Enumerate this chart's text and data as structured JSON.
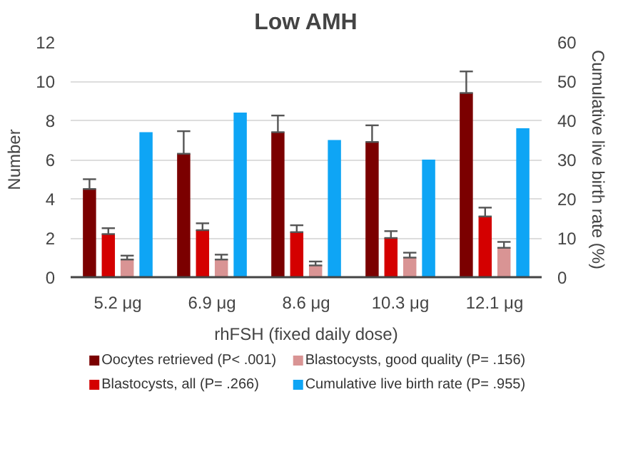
{
  "chart_data": {
    "type": "bar",
    "title": "Low AMH",
    "xlabel": "rhFSH (fixed daily dose)",
    "ylabel": "Number",
    "y2label": "Cumulative live birth rate (%)",
    "categories": [
      "5.2 μg",
      "6.9 μg",
      "8.6 μg",
      "10.3 μg",
      "12.1 μg"
    ],
    "series": [
      {
        "name": "Oocytes retrieved (P< .001)",
        "color": "#7b0000",
        "values": [
          4.5,
          6.3,
          7.4,
          6.9,
          9.4
        ],
        "errors": [
          [
            4.5,
            5.0
          ],
          [
            6.3,
            7.45
          ],
          [
            7.4,
            8.25
          ],
          [
            6.9,
            7.75
          ],
          [
            9.4,
            10.5
          ]
        ]
      },
      {
        "name": "Blastocysts, all (P= .266)",
        "color": "#d40000",
        "values": [
          2.2,
          2.4,
          2.3,
          2.0,
          3.1
        ],
        "errors": [
          [
            2.2,
            2.5
          ],
          [
            2.4,
            2.75
          ],
          [
            2.3,
            2.65
          ],
          [
            2.0,
            2.35
          ],
          [
            3.1,
            3.55
          ]
        ]
      },
      {
        "name": "Blastocysts, good quality (P= .156)",
        "color": "#d99494",
        "values": [
          0.9,
          0.9,
          0.6,
          1.0,
          1.5
        ],
        "errors": [
          [
            0.9,
            1.1
          ],
          [
            0.9,
            1.15
          ],
          [
            0.6,
            0.8
          ],
          [
            1.0,
            1.25
          ],
          [
            1.5,
            1.8
          ]
        ]
      },
      {
        "name": "Cumulative live birth rate (P= .955)",
        "color": "#0ea5f5",
        "values": [
          37,
          42,
          35,
          30,
          38
        ],
        "axis": "y2"
      }
    ],
    "ylim": [
      0,
      12
    ],
    "yticks": [
      0,
      2,
      4,
      6,
      8,
      10,
      12
    ],
    "y2lim": [
      0,
      60
    ],
    "y2ticks": [
      0,
      10,
      20,
      30,
      40,
      50,
      60
    ],
    "grid": "y",
    "legend": "bottom"
  }
}
